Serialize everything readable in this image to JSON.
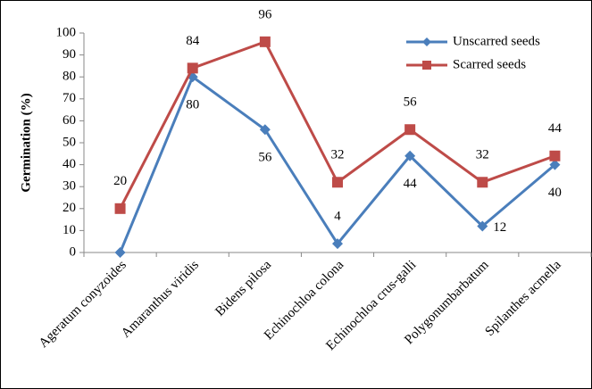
{
  "chart_data": {
    "type": "line",
    "y_label": "Germination (%)",
    "categories": [
      "Ageratum conyzoides",
      "Amaranthus viridis",
      "Bidens pilosa",
      "Echinochloa colona",
      "Echinochloa crus-galli",
      "Polygonumbarbatum",
      "Spilanthes acmella"
    ],
    "series": [
      {
        "name": "Unscarred seeds",
        "color": "#4a7ebb",
        "marker": "diamond",
        "values": [
          0,
          80,
          56,
          4,
          44,
          12,
          40
        ],
        "value_labels": [
          null,
          "80",
          "56",
          "4",
          "44",
          "12",
          "40"
        ]
      },
      {
        "name": "Scarred seeds",
        "color": "#be4b48",
        "marker": "square",
        "values": [
          20,
          84,
          96,
          32,
          56,
          32,
          44
        ],
        "value_labels": [
          "20",
          "84",
          "96",
          "32",
          "56",
          "32",
          "44"
        ]
      }
    ],
    "ylim": [
      0,
      100
    ],
    "yticks": [
      0,
      10,
      20,
      30,
      40,
      50,
      60,
      70,
      80,
      90,
      100
    ],
    "legend": "top-right"
  }
}
